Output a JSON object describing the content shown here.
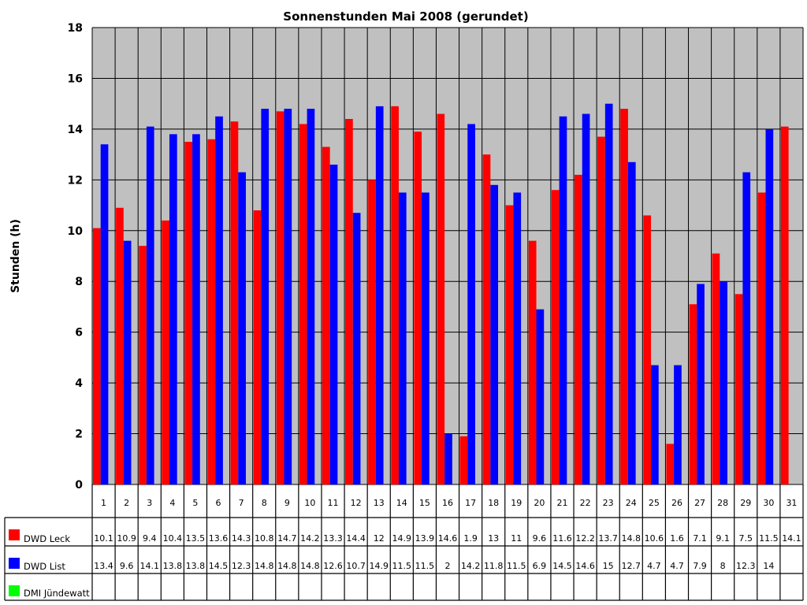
{
  "chart_data": {
    "type": "bar",
    "title": "Sonnenstunden Mai 2008 (gerundet)",
    "xlabel": "",
    "ylabel": "Stunden (h)",
    "ylim": [
      0,
      18
    ],
    "yticks": [
      0,
      2,
      4,
      6,
      8,
      10,
      12,
      14,
      16,
      18
    ],
    "grid": true,
    "legend": "data-table",
    "background": "#c0c0c0",
    "categories": [
      "1",
      "2",
      "3",
      "4",
      "5",
      "6",
      "7",
      "8",
      "9",
      "10",
      "11",
      "12",
      "13",
      "14",
      "15",
      "16",
      "17",
      "18",
      "19",
      "20",
      "21",
      "22",
      "23",
      "24",
      "25",
      "26",
      "27",
      "28",
      "29",
      "30",
      "31"
    ],
    "series": [
      {
        "name": "DWD Leck",
        "color": "#ff0000",
        "values": [
          10.1,
          10.9,
          9.4,
          10.4,
          13.5,
          13.6,
          14.3,
          10.8,
          14.7,
          14.2,
          13.3,
          14.4,
          12,
          14.9,
          13.9,
          14.6,
          1.9,
          13,
          11,
          9.6,
          11.6,
          12.2,
          13.7,
          14.8,
          10.6,
          1.6,
          7.1,
          9.1,
          7.5,
          11.5,
          14.1
        ]
      },
      {
        "name": "DWD List",
        "color": "#0000ff",
        "values": [
          13.4,
          9.6,
          14.1,
          13.8,
          13.8,
          14.5,
          12.3,
          14.8,
          14.8,
          14.8,
          12.6,
          10.7,
          14.9,
          11.5,
          11.5,
          2,
          14.2,
          11.8,
          11.5,
          6.9,
          14.5,
          14.6,
          15,
          12.7,
          4.7,
          4.7,
          7.9,
          8,
          12.3,
          14,
          null
        ]
      },
      {
        "name": "DMI Jündewatt",
        "color": "#00ff00",
        "values": [
          null,
          null,
          null,
          null,
          null,
          null,
          null,
          null,
          null,
          null,
          null,
          null,
          null,
          null,
          null,
          null,
          null,
          null,
          null,
          null,
          null,
          null,
          null,
          null,
          null,
          null,
          null,
          null,
          null,
          null,
          null
        ]
      }
    ]
  }
}
